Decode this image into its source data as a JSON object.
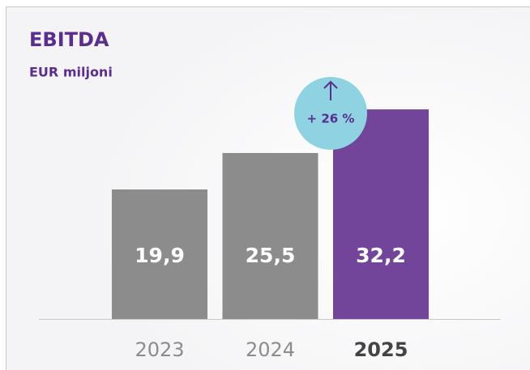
{
  "chart_data": {
    "type": "bar",
    "title": "EBITDA",
    "subtitle": "EUR miljoni",
    "categories": [
      "2023",
      "2024",
      "2025"
    ],
    "values": [
      19.9,
      25.5,
      32.2
    ],
    "value_labels": [
      "19,9",
      "25,5",
      "32,2"
    ],
    "colors": [
      "#8c8c8c",
      "#8c8c8c",
      "#72459a"
    ],
    "highlight": 2,
    "annotation": "+ 26 %",
    "annotation_color": "#8fd3e3"
  }
}
